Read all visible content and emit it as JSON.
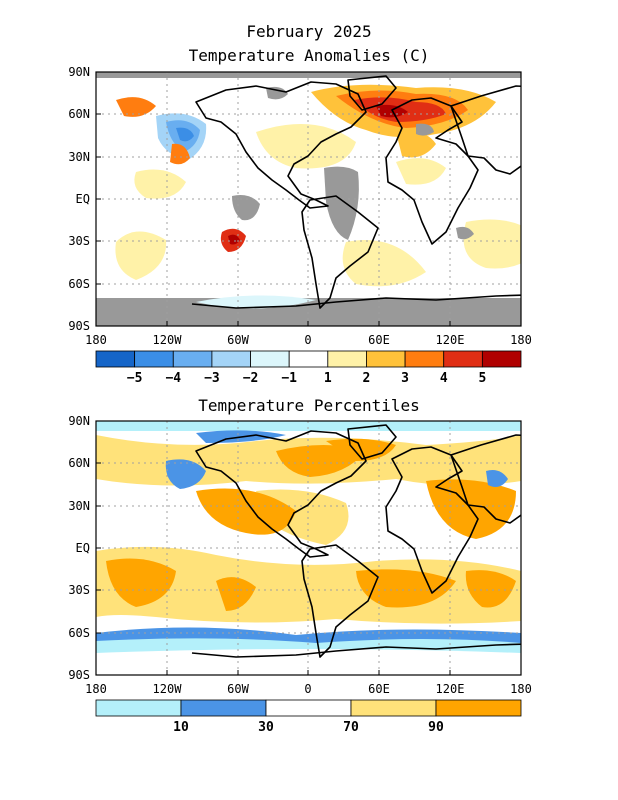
{
  "header": {
    "line1": "February 2025",
    "line2": "Temperature Anomalies (C)"
  },
  "panel2": {
    "title": "Temperature Percentiles"
  },
  "axes": {
    "lat_labels": [
      "90N",
      "60N",
      "30N",
      "EQ",
      "30S",
      "60S",
      "90S"
    ],
    "lon_labels": [
      "180",
      "120W",
      "60W",
      "0",
      "60E",
      "120E",
      "180"
    ]
  },
  "anomaly_colorbar": {
    "colors": [
      "#1565c8",
      "#3b8ee6",
      "#69aef0",
      "#a4d4f7",
      "#dcf6fb",
      "#ffffff",
      "#fff2a8",
      "#ffc23a",
      "#ff7d10",
      "#e02e14",
      "#b00000"
    ],
    "labels": [
      "-5",
      "-4",
      "-3",
      "-2",
      "-1",
      "1",
      "2",
      "3",
      "4",
      "5"
    ]
  },
  "percentile_colorbar": {
    "colors": [
      "#b4f0fa",
      "#4b94e6",
      "#ffffff",
      "#ffe27a",
      "#ffa500"
    ],
    "labels": [
      "10",
      "30",
      "70",
      "90"
    ]
  },
  "map_colors": {
    "missing": "#999999",
    "coast": "#000000",
    "grid": "#a0a0a0"
  }
}
